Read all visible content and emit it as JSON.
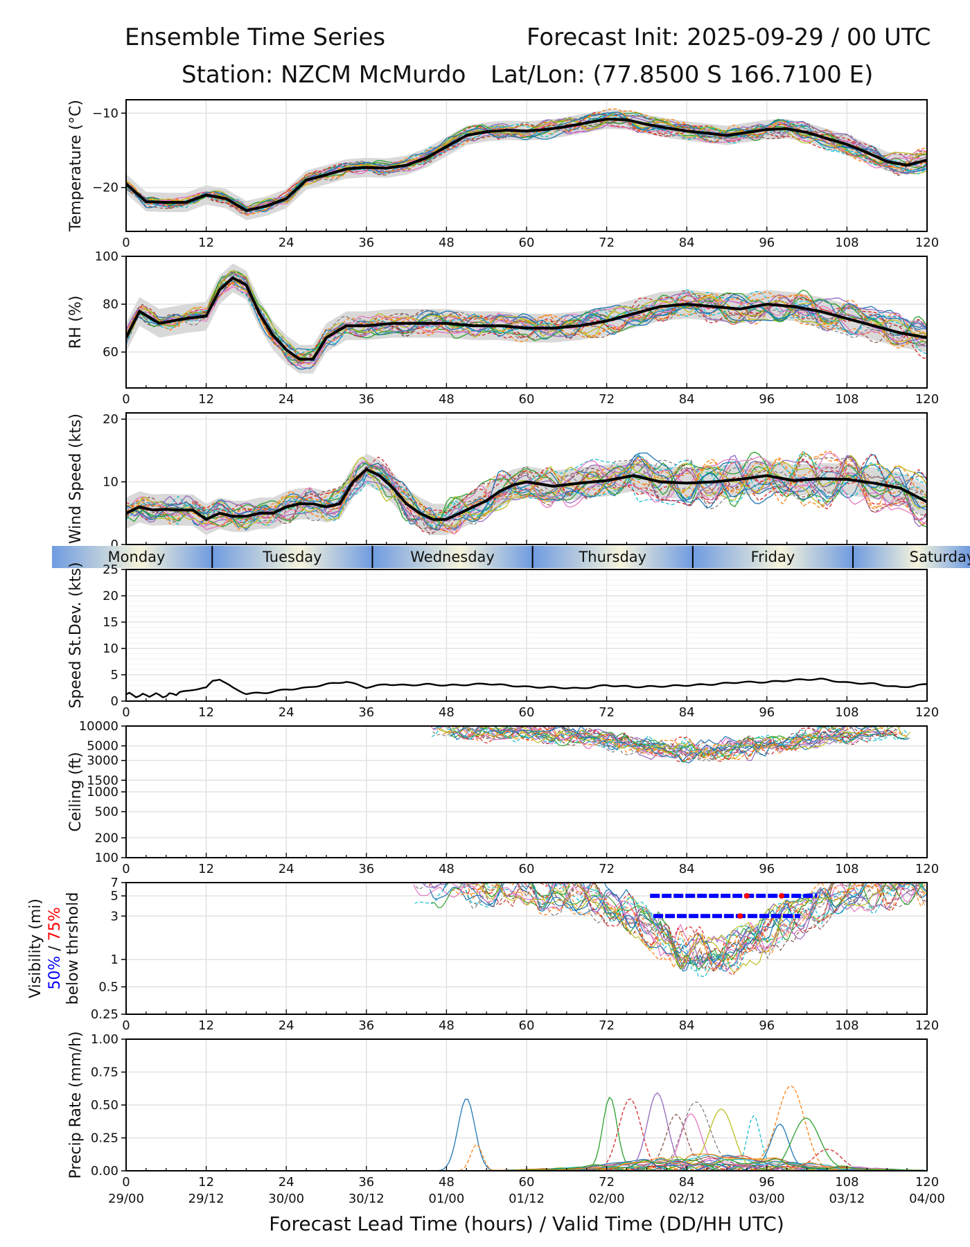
{
  "header": {
    "title": "Ensemble Time Series",
    "init": "Forecast Init: 2025-09-29 / 00 UTC",
    "station": "Station: NZCM McMurdo",
    "latlon": "Lat/Lon: (77.8500 S 166.7100 E)"
  },
  "xaxis": {
    "label": "Forecast Lead Time (hours) / Valid Time (DD/HH UTC)",
    "hour_ticks": [
      "0",
      "12",
      "24",
      "36",
      "48",
      "60",
      "72",
      "84",
      "96",
      "108",
      "120"
    ],
    "valid_ticks": [
      "29/00",
      "29/12",
      "30/00",
      "30/12",
      "01/00",
      "01/12",
      "02/00",
      "02/12",
      "03/00",
      "03/12",
      "04/00"
    ]
  },
  "day_band": {
    "days": [
      "Monday",
      "Tuesday",
      "Wednesday",
      "Thursday",
      "Friday",
      "Saturday"
    ],
    "boundaries_hours": [
      12.9,
      36.9,
      60.9,
      84.9,
      108.9
    ]
  },
  "palette": [
    "#1f77b4",
    "#ff7f0e",
    "#2ca02c",
    "#d62728",
    "#9467bd",
    "#8c564b",
    "#e377c2",
    "#7f7f7f",
    "#bcbd22",
    "#17becf"
  ],
  "chart_data": [
    {
      "id": "temperature",
      "type": "line",
      "ylabel": "Temperature (°C)",
      "ylim": [
        -25.9,
        -8.2
      ],
      "ymajor": [
        -10,
        -20
      ],
      "ytick_labels": [
        "−10",
        "−20"
      ],
      "x": [
        0,
        3,
        6,
        9,
        12,
        15,
        18,
        21,
        24,
        27,
        30,
        33,
        36,
        39,
        42,
        45,
        48,
        51,
        54,
        57,
        60,
        63,
        66,
        69,
        72,
        75,
        78,
        81,
        84,
        87,
        90,
        93,
        96,
        99,
        102,
        105,
        108,
        111,
        114,
        117,
        120
      ],
      "mean": [
        -19.5,
        -21.9,
        -22.0,
        -22.0,
        -21.0,
        -21.5,
        -23.1,
        -22.5,
        -21.5,
        -19.0,
        -18.3,
        -17.5,
        -17.3,
        -17.4,
        -17.0,
        -16.0,
        -14.5,
        -13.0,
        -12.5,
        -12.3,
        -12.4,
        -12.2,
        -11.8,
        -11.3,
        -10.8,
        -10.9,
        -11.5,
        -12.0,
        -12.4,
        -12.7,
        -13.0,
        -12.6,
        -12.2,
        -12.1,
        -12.6,
        -13.4,
        -14.2,
        -15.3,
        -16.5,
        -17.0,
        -16.3
      ],
      "spread": 1.3,
      "member_var": 1.2
    },
    {
      "id": "rh",
      "type": "line",
      "ylabel": "RH (%)",
      "ylim": [
        45,
        100
      ],
      "ymajor": [
        60,
        80,
        100
      ],
      "ytick_labels": [
        "60",
        "80",
        "100"
      ],
      "x": [
        0,
        2,
        5,
        9,
        12,
        14,
        16,
        18,
        20,
        22,
        24,
        26,
        28,
        30,
        33,
        36,
        40,
        44,
        48,
        52,
        56,
        60,
        64,
        68,
        72,
        76,
        80,
        84,
        88,
        92,
        96,
        100,
        104,
        108,
        112,
        116,
        120
      ],
      "mean": [
        66,
        77,
        72,
        74,
        75,
        86,
        91,
        88,
        76,
        67,
        61,
        57,
        57,
        66,
        71,
        71,
        72,
        72,
        72,
        71,
        71,
        70,
        70,
        71,
        73,
        76,
        79,
        80,
        79,
        78,
        80,
        79,
        77,
        74,
        71,
        68,
        66
      ],
      "spread": 6,
      "member_var": 6
    },
    {
      "id": "wind",
      "type": "line",
      "ylabel": "Wind Speed (kts)",
      "ylim": [
        0,
        21
      ],
      "ymajor": [
        0,
        10,
        20
      ],
      "ytick_labels": [
        "0",
        "10",
        "20"
      ],
      "x": [
        0,
        2,
        4,
        6,
        8,
        10,
        12,
        14,
        16,
        18,
        20,
        22,
        24,
        26,
        28,
        30,
        32,
        34,
        36,
        38,
        40,
        42,
        44,
        46,
        48,
        50,
        52,
        54,
        56,
        58,
        60,
        64,
        68,
        72,
        76,
        80,
        84,
        88,
        92,
        96,
        100,
        104,
        108,
        112,
        116,
        120
      ],
      "mean": [
        5,
        6,
        5.5,
        5.6,
        5.5,
        5.5,
        4,
        5,
        4.5,
        4.5,
        5,
        5,
        6,
        6.5,
        6.5,
        6,
        6.5,
        10,
        12,
        11,
        9,
        6.5,
        5,
        4,
        4,
        5,
        6,
        7,
        8.5,
        9.5,
        10,
        9.3,
        9.8,
        10.2,
        11,
        10,
        9.8,
        10,
        10.4,
        11,
        10.2,
        10.5,
        10.4,
        9.8,
        9,
        6.8
      ],
      "spread": 2.5,
      "member_var": 3.5
    },
    {
      "id": "speed_sd",
      "type": "line",
      "ylabel": "Speed St.Dev. (kts)",
      "ylim": [
        0,
        25
      ],
      "ymajor": [
        0,
        5,
        10,
        15,
        20,
        25
      ],
      "ytick_labels": [
        "0",
        "5",
        "10",
        "15",
        "20",
        "25"
      ],
      "x": [
        0,
        2,
        4,
        6,
        8,
        10,
        12,
        13,
        14,
        16,
        18,
        21,
        24,
        27,
        30,
        33,
        36,
        39,
        42,
        45,
        48,
        51,
        54,
        57,
        60,
        64,
        68,
        72,
        76,
        80,
        84,
        88,
        92,
        96,
        100,
        104,
        108,
        112,
        116,
        120
      ],
      "values": [
        1.3,
        1.0,
        1.2,
        1.0,
        1.6,
        2.2,
        2.5,
        3.9,
        4.2,
        2.5,
        1.4,
        1.6,
        2.2,
        2.5,
        3.2,
        3.7,
        2.6,
        3.2,
        3.0,
        3.2,
        3.0,
        3.1,
        3.3,
        3.0,
        2.7,
        2.6,
        2.4,
        3.0,
        2.7,
        2.8,
        3.0,
        3.2,
        3.6,
        3.6,
        4.0,
        4.2,
        3.5,
        3.3,
        2.6,
        3.2
      ]
    },
    {
      "id": "ceiling",
      "type": "line",
      "ylabel": "Ceiling (ft)",
      "yscale": "log",
      "ylim": [
        100,
        10000
      ],
      "ymajor": [
        100,
        200,
        500,
        1000,
        1500,
        3000,
        5000,
        10000
      ],
      "ytick_labels": [
        "100",
        "200",
        "500",
        "1000",
        "1500",
        "3000",
        "5000",
        "10000"
      ],
      "x_active": [
        45,
        118
      ],
      "band_ft": [
        3000,
        10000
      ]
    },
    {
      "id": "visibility",
      "type": "line",
      "ylabel": "Visibility (mi)",
      "ylabel_pct50": "50%",
      "ylabel_sep": " / ",
      "ylabel_pct75": "75%",
      "ylabel2": "below thrshold",
      "yscale": "log",
      "ylim": [
        0.25,
        7
      ],
      "ymajor": [
        0.25,
        0.5,
        1,
        3,
        5,
        7
      ],
      "ytick_labels": [
        "0.25",
        "0.5",
        "1",
        "3",
        "5",
        "7"
      ],
      "x_active": [
        43,
        120
      ],
      "threshold_50": [
        {
          "y": 5,
          "from": 78.5,
          "to": 103.5
        },
        {
          "y": 3,
          "from": 79,
          "to": 101
        }
      ],
      "threshold_75": [
        {
          "y": 5,
          "at": [
            93,
            98.2
          ]
        },
        {
          "y": 3,
          "at": [
            92
          ]
        }
      ]
    },
    {
      "id": "precip",
      "type": "line",
      "ylabel": "Precip Rate (mm/h)",
      "ylim": [
        0,
        1
      ],
      "ymajor": [
        0,
        0.25,
        0.5,
        0.75,
        1
      ],
      "ytick_labels": [
        "0.00",
        "0.25",
        "0.50",
        "0.75",
        "1.00"
      ],
      "peaks": [
        {
          "x": 51,
          "v": 0.55
        },
        {
          "x": 52.5,
          "v": 0.2
        },
        {
          "x": 72.5,
          "v": 0.56
        },
        {
          "x": 75.5,
          "v": 0.52
        },
        {
          "x": 79.5,
          "v": 0.57
        },
        {
          "x": 82.5,
          "v": 0.42
        },
        {
          "x": 84.5,
          "v": 0.4
        },
        {
          "x": 85.5,
          "v": 0.48
        },
        {
          "x": 89,
          "v": 0.44
        },
        {
          "x": 94,
          "v": 0.41
        },
        {
          "x": 98,
          "v": 0.35
        },
        {
          "x": 99.5,
          "v": 0.63
        },
        {
          "x": 102,
          "v": 0.39
        },
        {
          "x": 105,
          "v": 0.15
        }
      ]
    }
  ]
}
